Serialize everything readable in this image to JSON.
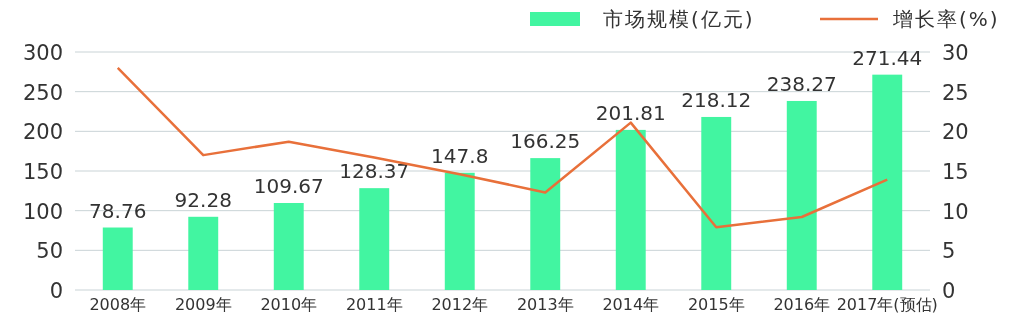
{
  "chart_data": {
    "type": "bar",
    "categories": [
      "2008年",
      "2009年",
      "2010年",
      "2011年",
      "2012年",
      "2013年",
      "2014年",
      "2015年",
      "2016年",
      "2017年(预估)"
    ],
    "series": [
      {
        "name": "市场规模(亿元)",
        "color": "#42f5a1",
        "values": [
          78.76,
          92.28,
          109.67,
          128.37,
          147.8,
          166.25,
          201.81,
          218.12,
          238.27,
          271.44
        ],
        "value_labels": [
          "78.76",
          "92.28",
          "109.67",
          "128.37",
          "147.8",
          "166.25",
          "201.81",
          "218.12",
          "238.27",
          "271.44"
        ]
      },
      {
        "name": "增长率(%)",
        "type": "line",
        "axis": "y2",
        "color": "#e8703a",
        "values": [
          28,
          17,
          18.7,
          16.7,
          14.6,
          12.3,
          21.1,
          7.9,
          9.2,
          13.9
        ]
      }
    ],
    "ylim": [
      0,
      300
    ],
    "yticks": [
      0,
      50,
      100,
      150,
      200,
      250,
      300
    ],
    "y2lim": [
      0,
      30
    ],
    "y2ticks": [
      0,
      5,
      10,
      15,
      20,
      25,
      30
    ],
    "grid": "y",
    "legend": "top right",
    "marker": "none",
    "line_style": "solid"
  }
}
